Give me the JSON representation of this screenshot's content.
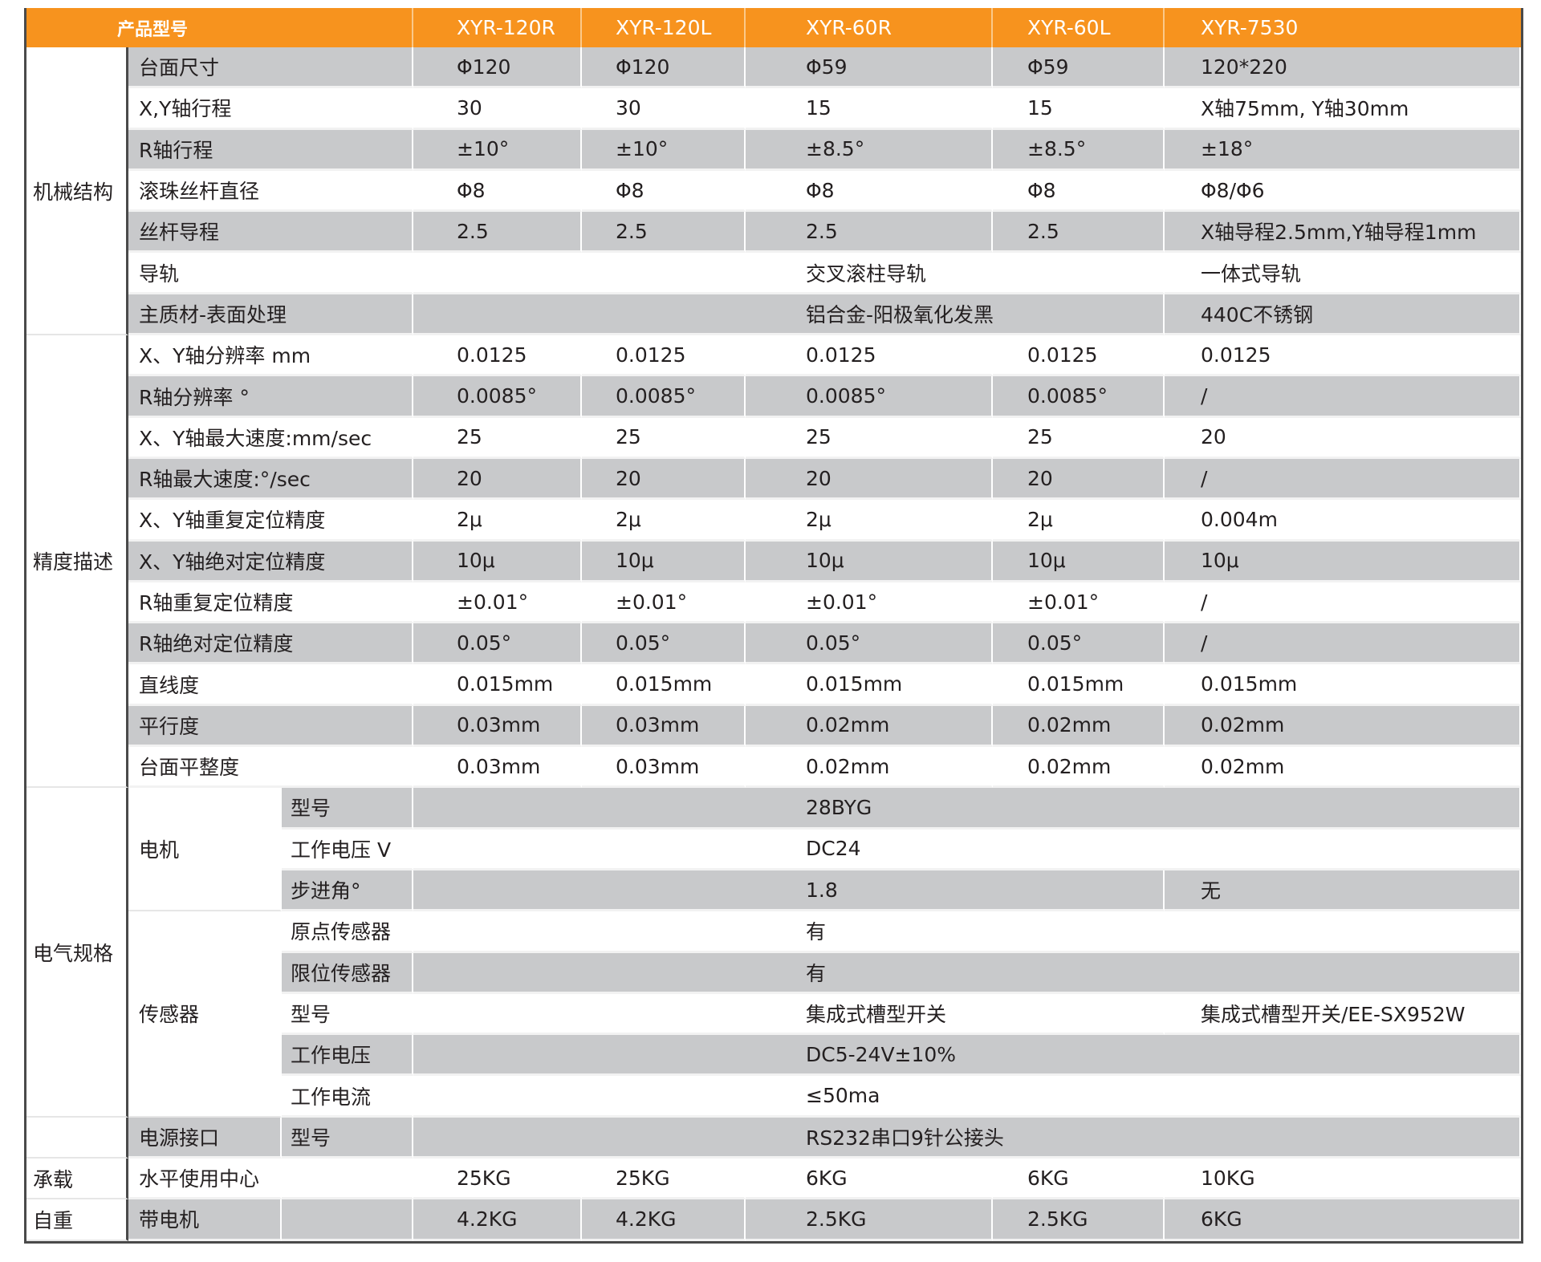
{
  "header": {
    "title": "产品型号",
    "models": [
      "XYR-120R",
      "XYR-120L",
      "XYR-60R",
      "XYR-60L",
      "XYR-7530"
    ]
  },
  "colors": {
    "header_bg": "#f7931e",
    "row_shade": "#c8c9cb",
    "row_plain": "#ffffff"
  },
  "groups": {
    "mechanical": "机械结构",
    "precision": "精度描述",
    "electrical": "电气规格",
    "load": "承载",
    "weight": "自重",
    "motor": "电机",
    "sensor": "传感器",
    "power": "电源接口"
  },
  "rows": [
    {
      "label": "台面尺寸",
      "values": [
        "Φ120",
        "Φ120",
        "Φ59",
        "Φ59",
        "120*220"
      ]
    },
    {
      "label": "X,Y轴行程",
      "values": [
        "30",
        "30",
        "15",
        "15",
        "X轴75mm, Y轴30mm"
      ]
    },
    {
      "label": "R轴行程",
      "values": [
        "±10°",
        "±10°",
        "±8.5°",
        "±8.5°",
        "±18°"
      ]
    },
    {
      "label": "滚珠丝杆直径",
      "values": [
        "Φ8",
        "Φ8",
        "Φ8",
        "Φ8",
        "Φ8/Φ6"
      ]
    },
    {
      "label": "丝杆导程",
      "values": [
        "2.5",
        "2.5",
        "2.5",
        "2.5",
        "X轴导程2.5mm,Y轴导程1mm"
      ]
    },
    {
      "label": "导轨",
      "values": [
        "交叉滚柱导轨",
        "一体式导轨"
      ]
    },
    {
      "label": "主质材-表面处理",
      "values": [
        "铝合金-阳极氧化发黑",
        "440C不锈钢"
      ]
    },
    {
      "label": "X、Y轴分辨率 mm",
      "values": [
        "0.0125",
        "0.0125",
        "0.0125",
        "0.0125",
        "0.0125"
      ]
    },
    {
      "label": "R轴分辨率 °",
      "values": [
        "0.0085°",
        "0.0085°",
        "0.0085°",
        "0.0085°",
        "/"
      ]
    },
    {
      "label": "X、Y轴最大速度:mm/sec",
      "values": [
        "25",
        "25",
        "25",
        "25",
        "20"
      ]
    },
    {
      "label": "R轴最大速度:°/sec",
      "values": [
        "20",
        "20",
        "20",
        "20",
        "/"
      ]
    },
    {
      "label": "X、Y轴重复定位精度",
      "values": [
        "2μ",
        "2μ",
        "2μ",
        "2μ",
        "0.004m"
      ]
    },
    {
      "label": "X、Y轴绝对定位精度",
      "values": [
        "10μ",
        "10μ",
        "10μ",
        "10μ",
        "10μ"
      ]
    },
    {
      "label": "R轴重复定位精度",
      "values": [
        "±0.01°",
        "±0.01°",
        "±0.01°",
        "±0.01°",
        "/"
      ]
    },
    {
      "label": "R轴绝对定位精度",
      "values": [
        "0.05°",
        "0.05°",
        "0.05°",
        "0.05°",
        "/"
      ]
    },
    {
      "label": "直线度",
      "values": [
        "0.015mm",
        "0.015mm",
        "0.015mm",
        "0.015mm",
        "0.015mm"
      ]
    },
    {
      "label": "平行度",
      "values": [
        "0.03mm",
        "0.03mm",
        "0.02mm",
        "0.02mm",
        "0.02mm"
      ]
    },
    {
      "label": "台面平整度",
      "values": [
        "0.03mm",
        "0.03mm",
        "0.02mm",
        "0.02mm",
        "0.02mm"
      ]
    },
    {
      "sublabel": "型号",
      "values": [
        "28BYG"
      ]
    },
    {
      "sublabel": "工作电压 V",
      "values": [
        "DC24"
      ]
    },
    {
      "sublabel": "步进角°",
      "values": [
        "1.8",
        "无"
      ]
    },
    {
      "sublabel": "原点传感器",
      "values": [
        "有"
      ]
    },
    {
      "sublabel": "限位传感器",
      "values": [
        "有"
      ]
    },
    {
      "sublabel": "型号",
      "values": [
        "集成式槽型开关",
        "集成式槽型开关/EE-SX952W"
      ]
    },
    {
      "sublabel": "工作电压",
      "values": [
        "DC5-24V±10%"
      ]
    },
    {
      "sublabel": "工作电流",
      "values": [
        "≤50ma"
      ]
    },
    {
      "sublabel": "型号",
      "values": [
        "RS232串口9针公接头"
      ]
    },
    {
      "label": "水平使用中心",
      "values": [
        "25KG",
        "25KG",
        "6KG",
        "6KG",
        "10KG"
      ]
    },
    {
      "label": "带电机",
      "values": [
        "4.2KG",
        "4.2KG",
        "2.5KG",
        "2.5KG",
        "6KG"
      ]
    }
  ]
}
